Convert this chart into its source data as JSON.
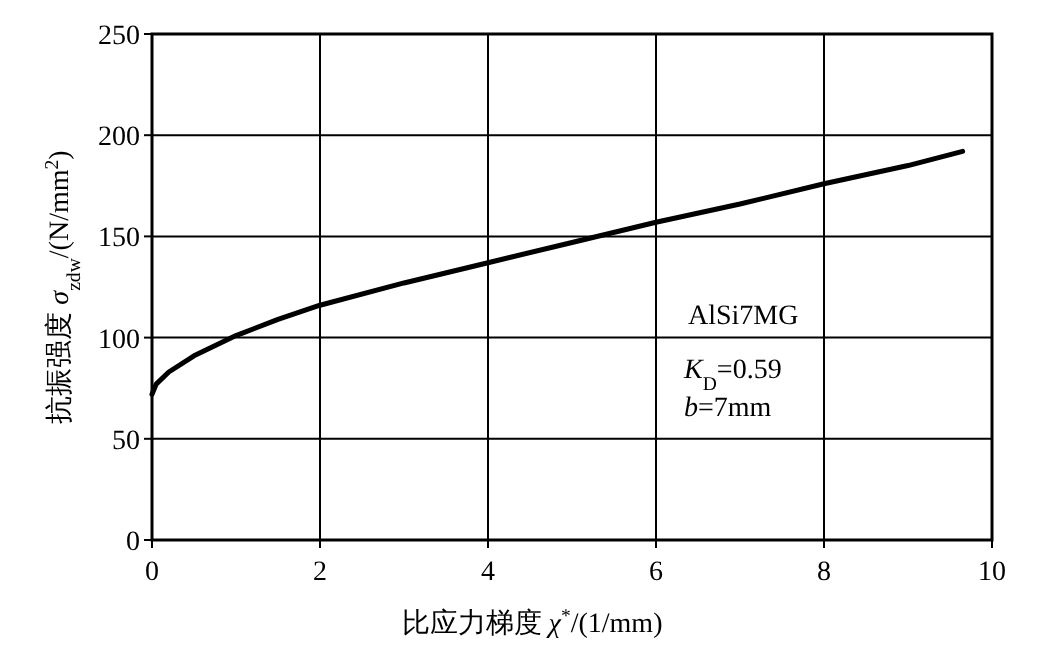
{
  "chart_data": {
    "type": "line",
    "xlabel": "比应力梯度 *χ*$^{*}$/(1/mm)",
    "ylabel": "抗振强度 *σ*$_{zdw}$/(N/mm$^{2}$)",
    "annotations": [
      "AlSi7MG",
      "*K*$_{D}$=0.59",
      "*b*=7mm"
    ],
    "series": [
      {
        "color": "#000000",
        "x": [
          0,
          0.05,
          0.2,
          0.5,
          1,
          1.5,
          2,
          3,
          4,
          5,
          6,
          7,
          8,
          9,
          9.65
        ],
        "values": [
          72,
          77,
          83,
          91,
          101,
          109,
          116,
          127,
          137,
          147,
          157,
          166,
          176,
          185,
          192
        ]
      }
    ],
    "xlim": [
      0,
      10
    ],
    "ylim": [
      0,
      250
    ],
    "xticks": [
      0,
      2,
      4,
      6,
      8,
      10
    ],
    "yticks": [
      0,
      50,
      100,
      150,
      200,
      250
    ],
    "grid": true,
    "marker": "none",
    "line_style": "solid"
  }
}
